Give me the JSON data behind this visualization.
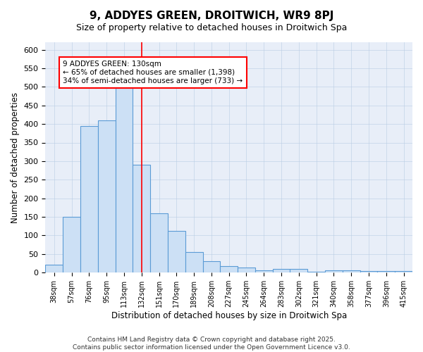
{
  "title": "9, ADDYES GREEN, DROITWICH, WR9 8PJ",
  "subtitle": "Size of property relative to detached houses in Droitwich Spa",
  "xlabel": "Distribution of detached houses by size in Droitwich Spa",
  "ylabel": "Number of detached properties",
  "bar_values": [
    22,
    150,
    395,
    410,
    510,
    290,
    160,
    112,
    55,
    30,
    18,
    14,
    7,
    9,
    10,
    3,
    6,
    7,
    5,
    4,
    4
  ],
  "x_labels": [
    "38sqm",
    "57sqm",
    "76sqm",
    "95sqm",
    "113sqm",
    "132sqm",
    "151sqm",
    "170sqm",
    "189sqm",
    "208sqm",
    "227sqm",
    "245sqm",
    "264sqm",
    "283sqm",
    "302sqm",
    "321sqm",
    "340sqm",
    "358sqm",
    "377sqm",
    "396sqm",
    "415sqm"
  ],
  "bar_color_fill": "#cce0f5",
  "bar_color_edge": "#5b9bd5",
  "red_line_x": 5,
  "annotation_text": "9 ADDYES GREEN: 130sqm\n← 65% of detached houses are smaller (1,398)\n34% of semi-detached houses are larger (733) →",
  "annotation_box_color": "white",
  "annotation_box_edge": "red",
  "ylim": [
    0,
    620
  ],
  "yticks": [
    0,
    50,
    100,
    150,
    200,
    250,
    300,
    350,
    400,
    450,
    500,
    550,
    600
  ],
  "background_color": "#e8eef8",
  "footer_text": "Contains HM Land Registry data © Crown copyright and database right 2025.\nContains public sector information licensed under the Open Government Licence v3.0.",
  "figsize": [
    6.0,
    5.0
  ],
  "dpi": 100
}
